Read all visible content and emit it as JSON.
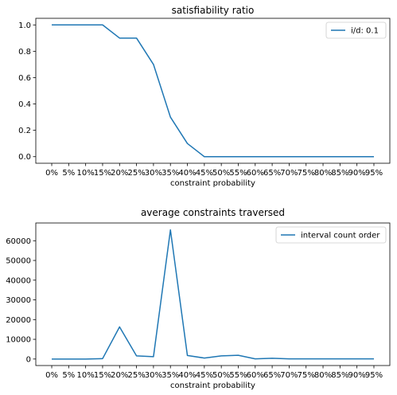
{
  "chart_data": [
    {
      "type": "line",
      "title": "satisfiability ratio",
      "xlabel": "constraint probability",
      "ylabel": "",
      "categories": [
        "0%",
        "5%",
        "10%",
        "15%",
        "20%",
        "25%",
        "30%",
        "35%",
        "40%",
        "45%",
        "50%",
        "55%",
        "60%",
        "65%",
        "70%",
        "75%",
        "80%",
        "85%",
        "90%",
        "95%"
      ],
      "ylim": [
        -0.05,
        1.05
      ],
      "yticks": [
        0.0,
        0.2,
        0.4,
        0.6,
        0.8,
        1.0
      ],
      "ytick_labels": [
        "0.0",
        "0.2",
        "0.4",
        "0.6",
        "0.8",
        "1.0"
      ],
      "legend_position": "top-right",
      "grid": false,
      "series": [
        {
          "name": "i/d: 0.1",
          "color": "#1f77b4",
          "values": [
            1.0,
            1.0,
            1.0,
            1.0,
            0.9,
            0.9,
            0.7,
            0.3,
            0.1,
            0.0,
            0.0,
            0.0,
            0.0,
            0.0,
            0.0,
            0.0,
            0.0,
            0.0,
            0.0,
            0.0
          ]
        }
      ]
    },
    {
      "type": "line",
      "title": "average constraints traversed",
      "xlabel": "constraint probability",
      "ylabel": "",
      "categories": [
        "0%",
        "5%",
        "10%",
        "15%",
        "20%",
        "25%",
        "30%",
        "35%",
        "40%",
        "45%",
        "50%",
        "55%",
        "60%",
        "65%",
        "70%",
        "75%",
        "80%",
        "85%",
        "90%",
        "95%"
      ],
      "ylim": [
        -3300,
        69000
      ],
      "yticks": [
        0,
        10000,
        20000,
        30000,
        40000,
        50000,
        60000
      ],
      "ytick_labels": [
        "0",
        "10000",
        "20000",
        "30000",
        "40000",
        "50000",
        "60000"
      ],
      "legend_position": "top-right",
      "grid": false,
      "series": [
        {
          "name": "interval count order",
          "color": "#1f77b4",
          "values": [
            0,
            0,
            0,
            200,
            16300,
            1600,
            1200,
            65500,
            1800,
            500,
            1600,
            1900,
            100,
            400,
            100,
            100,
            100,
            100,
            100,
            100
          ]
        }
      ]
    }
  ]
}
